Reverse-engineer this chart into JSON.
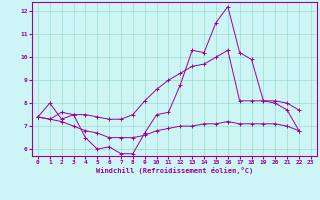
{
  "xlabel": "Windchill (Refroidissement éolien,°C)",
  "background_color": "#cef5f5",
  "grid_color": "#99ddcc",
  "line_color": "#990099",
  "ylim": [
    5.7,
    12.4
  ],
  "xlim": [
    -0.5,
    23.5
  ],
  "yticks": [
    6,
    7,
    8,
    9,
    10,
    11,
    12
  ],
  "xticks": [
    0,
    1,
    2,
    3,
    4,
    5,
    6,
    7,
    8,
    9,
    10,
    11,
    12,
    13,
    14,
    15,
    16,
    17,
    18,
    19,
    20,
    21,
    22,
    23
  ],
  "series": [
    [
      7.4,
      8.0,
      7.3,
      7.5,
      6.5,
      6.0,
      6.1,
      5.8,
      5.8,
      6.7,
      7.5,
      7.6,
      8.8,
      10.3,
      10.2,
      11.5,
      12.2,
      10.2,
      9.9,
      8.1,
      8.0,
      7.7,
      6.8
    ],
    [
      7.4,
      7.3,
      7.6,
      7.5,
      7.5,
      7.4,
      7.3,
      7.3,
      7.5,
      8.1,
      8.6,
      9.0,
      9.3,
      9.6,
      9.7,
      10.0,
      10.3,
      8.1,
      8.1,
      8.1,
      8.1,
      8.0,
      7.7
    ],
    [
      7.4,
      7.3,
      7.2,
      7.0,
      6.8,
      6.7,
      6.5,
      6.5,
      6.5,
      6.6,
      6.8,
      6.9,
      7.0,
      7.0,
      7.1,
      7.1,
      7.2,
      7.1,
      7.1,
      7.1,
      7.1,
      7.0,
      6.8
    ]
  ]
}
